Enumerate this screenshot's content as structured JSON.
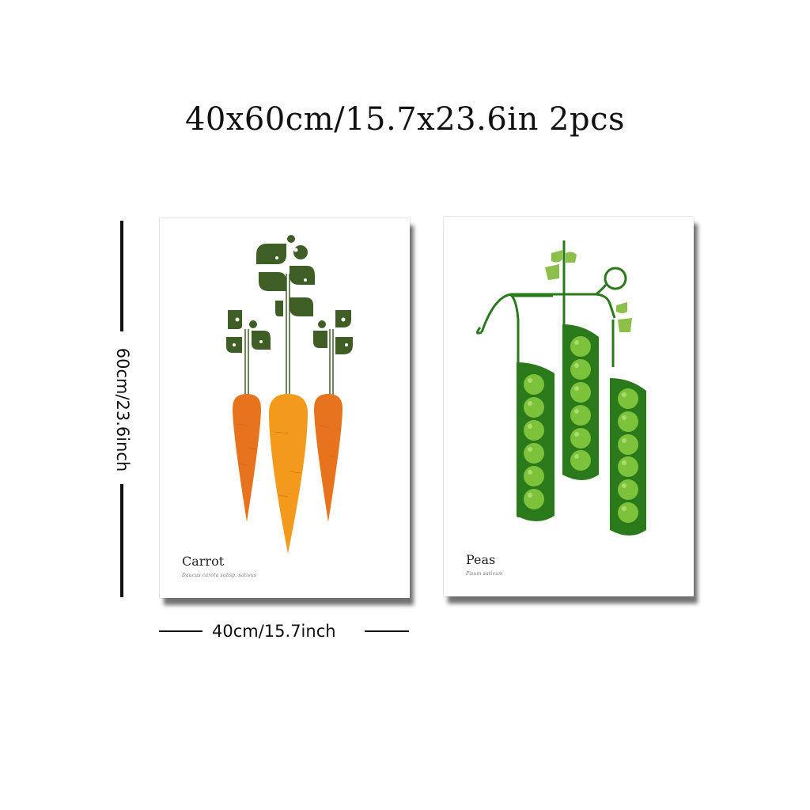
{
  "heading": "40x60cm/15.7x23.6in 2pcs",
  "dimensions": {
    "height_label": "60cm/23.6inch",
    "width_label": "40cm/15.7inch"
  },
  "posters": [
    {
      "name": "Carrot",
      "subtitle": "Daucus carota subsp. sativus",
      "colors": {
        "carrot": "#e8731e",
        "carrot_light": "#f39a1c",
        "leaf": "#3f5e26"
      }
    },
    {
      "name": "Peas",
      "subtitle": "Pisum sativum",
      "colors": {
        "pod": "#2a7a1c",
        "pea": "#7cc23a",
        "leaf": "#8cc04a"
      }
    }
  ]
}
